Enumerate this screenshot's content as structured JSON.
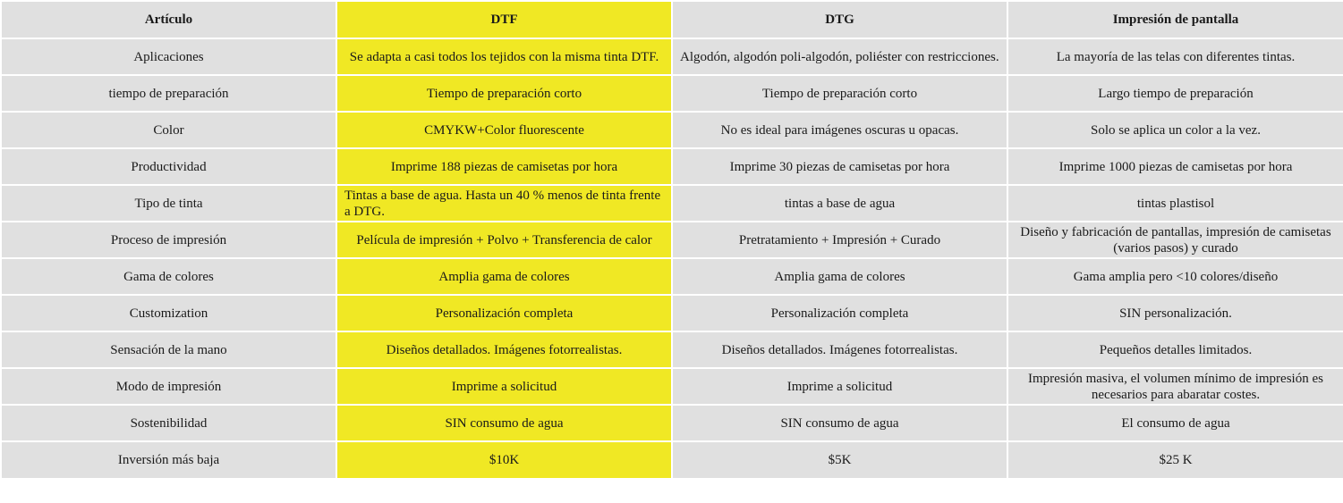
{
  "headers": [
    "Artículo",
    "DTF",
    "DTG",
    "Impresión de pantalla"
  ],
  "highlight_color": "#f0e824",
  "cell_color": "#e0e0e0",
  "rows": [
    [
      "Aplicaciones",
      "Se adapta a casi todos los tejidos con la misma tinta DTF.",
      "Algodón, algodón poli-algodón, poliéster con restricciones.",
      "La mayoría de las telas con diferentes tintas."
    ],
    [
      "tiempo de preparación",
      "Tiempo de preparación corto",
      "Tiempo de preparación corto",
      "Largo tiempo de preparación"
    ],
    [
      "Color",
      "CMYKW+Color fluorescente",
      "No es ideal para imágenes oscuras u opacas.",
      "Solo se aplica un color a la vez."
    ],
    [
      "Productividad",
      "Imprime 188 piezas de camisetas por hora",
      "Imprime 30 piezas de camisetas por hora",
      "Imprime 1000 piezas de camisetas por hora"
    ],
    [
      "Tipo de tinta",
      "Tintas a base de agua. Hasta un 40 % menos de tinta frente a DTG.",
      "tintas a base de agua",
      "tintas plastisol"
    ],
    [
      "Proceso de impresión",
      "Película de impresión + Polvo + Transferencia de calor",
      "Pretratamiento + Impresión + Curado",
      "Diseño y fabricación de pantallas, impresión de camisetas (varios pasos) y curado"
    ],
    [
      "Gama de colores",
      "Amplia gama de colores",
      "Amplia gama de colores",
      "Gama amplia pero <10 colores/diseño"
    ],
    [
      "Customization",
      "Personalización completa",
      "Personalización completa",
      "SIN personalización."
    ],
    [
      "Sensación de la mano",
      "Diseños detallados. Imágenes fotorrealistas.",
      "Diseños detallados. Imágenes fotorrealistas.",
      "Pequeños detalles limitados."
    ],
    [
      "Modo de impresión",
      "Imprime a solicitud",
      "Imprime a solicitud",
      "Impresión masiva, el volumen mínimo de impresión es necesarios para abaratar costes."
    ],
    [
      "Sostenibilidad",
      "SIN consumo de agua",
      "SIN consumo de agua",
      "El consumo de agua"
    ],
    [
      "Inversión más baja",
      "$10K",
      "$5K",
      "$25 K"
    ]
  ]
}
